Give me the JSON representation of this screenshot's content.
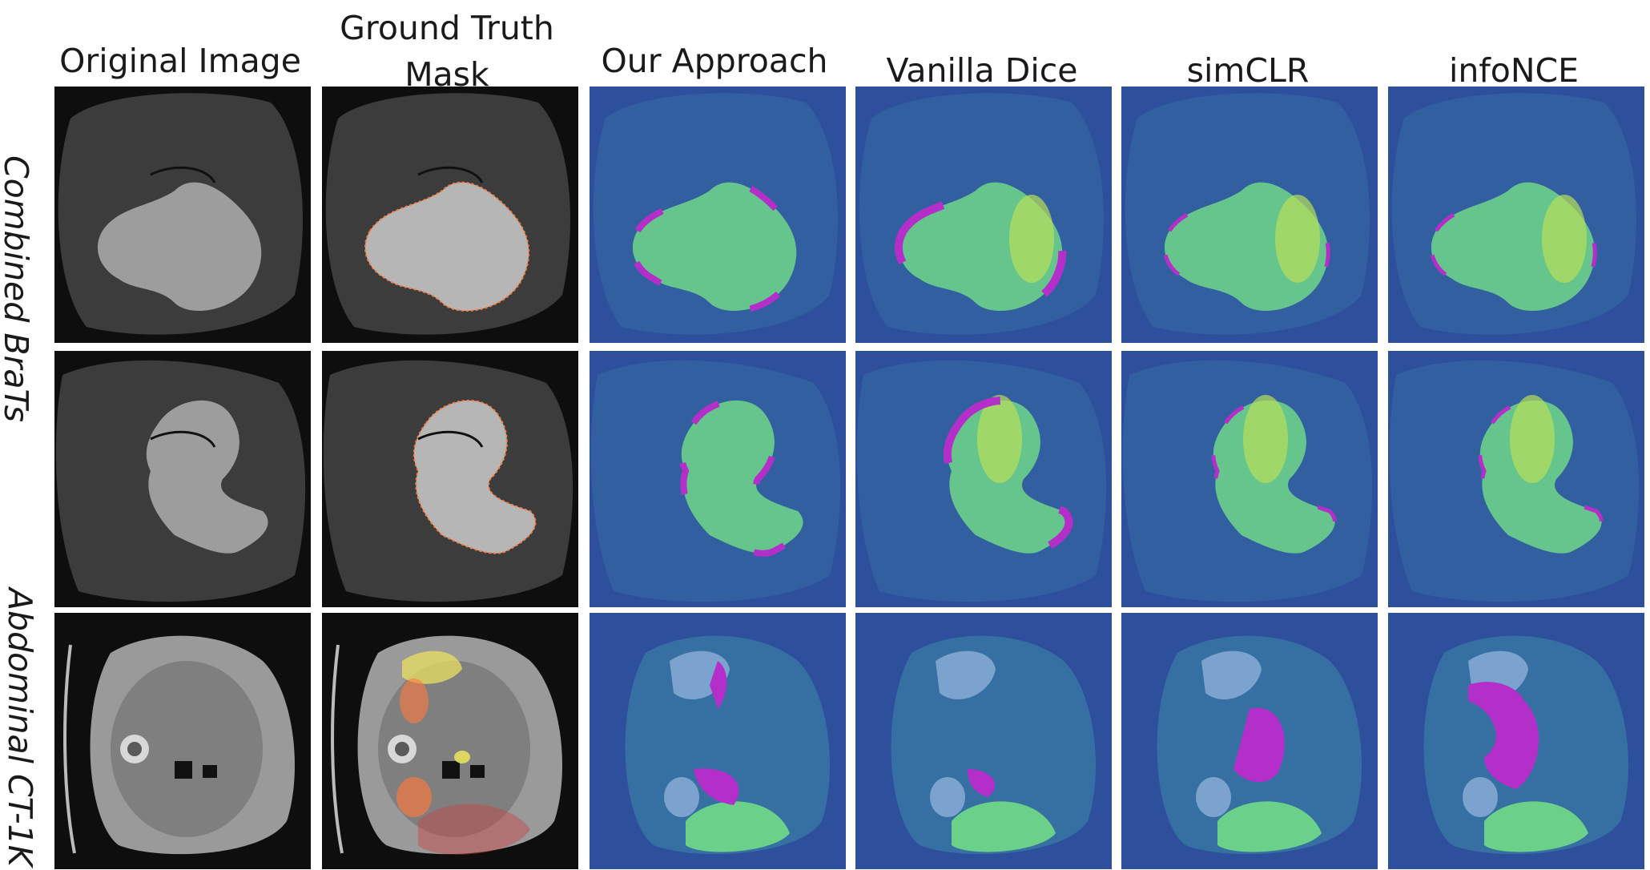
{
  "figure": {
    "columns": [
      {
        "header": "Original Image"
      },
      {
        "header": "Ground Truth Mask"
      },
      {
        "header": "Our Approach"
      },
      {
        "header": "Vanilla Dice"
      },
      {
        "header": "simCLR"
      },
      {
        "header": "infoNCE"
      }
    ],
    "row_labels": [
      "Combined BraTs",
      "Abdominal CT-1K"
    ],
    "rows": [
      {
        "dataset": "brats",
        "variant": 1
      },
      {
        "dataset": "brats",
        "variant": 2
      },
      {
        "dataset": "ct",
        "variant": 1
      }
    ],
    "colors": {
      "pred_background": "#2e4f9c",
      "pred_inner": "#3a7fa5",
      "pred_fill": "#6bd08a",
      "pred_highlight": "#b8e05a",
      "error": "#b42fc9",
      "gt_overlay": "#ff7a3c",
      "gt_liver_overlay": "#e8e060"
    }
  }
}
